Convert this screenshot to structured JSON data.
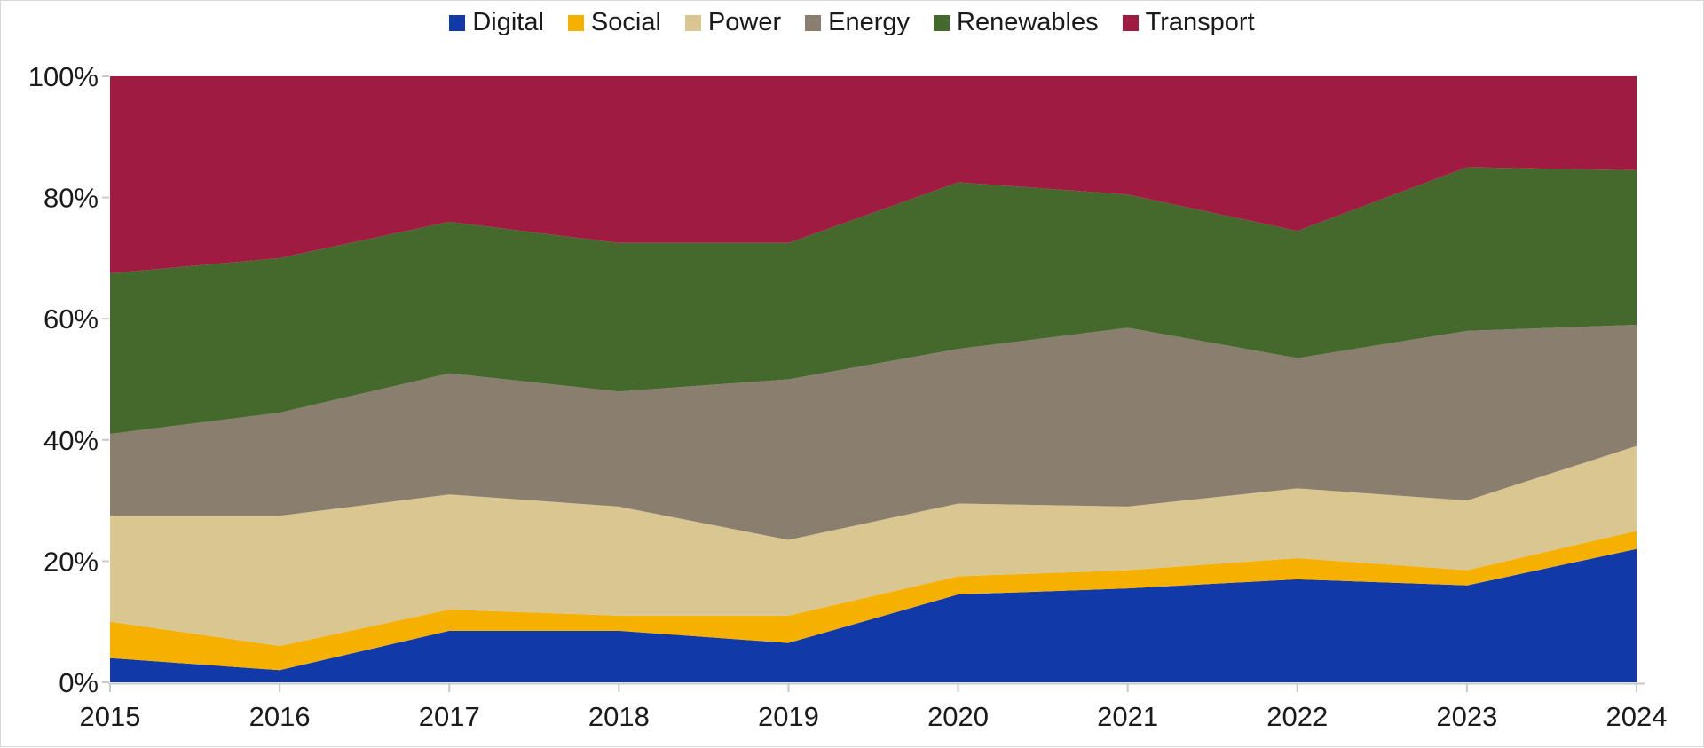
{
  "chart_data": {
    "type": "area",
    "stacking": "percent",
    "title": "",
    "categories": [
      "2015",
      "2016",
      "2017",
      "2018",
      "2019",
      "2020",
      "2021",
      "2022",
      "2023",
      "2024"
    ],
    "series": [
      {
        "name": "Digital",
        "color": "#1139A8",
        "values": [
          4,
          2,
          8.5,
          8.5,
          6.5,
          14.5,
          15.5,
          17,
          16,
          22
        ]
      },
      {
        "name": "Social",
        "color": "#F5B000",
        "values": [
          6,
          4,
          3.5,
          2.5,
          4.5,
          3,
          3,
          3.5,
          2.5,
          3
        ]
      },
      {
        "name": "Power",
        "color": "#D9C690",
        "values": [
          17.5,
          21.5,
          19,
          18,
          12.5,
          12,
          10.5,
          11.5,
          11.5,
          14
        ]
      },
      {
        "name": "Energy",
        "color": "#8A7E6F",
        "values": [
          13.5,
          17,
          20,
          19,
          26.5,
          25.5,
          29.5,
          21.5,
          28,
          20
        ]
      },
      {
        "name": "Renewables",
        "color": "#45682C",
        "values": [
          26.5,
          25.5,
          25,
          24.5,
          22.5,
          27.5,
          22,
          21,
          27,
          25.5
        ]
      },
      {
        "name": "Transport",
        "color": "#A01B42",
        "values": [
          32.5,
          30,
          24,
          27.5,
          27.5,
          17.5,
          19.5,
          25.5,
          15,
          15.5
        ]
      }
    ],
    "y_axis": {
      "min": 0,
      "max": 100,
      "tick_step": 20,
      "tick_labels": [
        "100%",
        "80%",
        "60%",
        "40%",
        "20%",
        "0%"
      ]
    },
    "x_axis": {
      "tick_labels": [
        "2015",
        "2016",
        "2017",
        "2018",
        "2019",
        "2020",
        "2021",
        "2022",
        "2023",
        "2024"
      ]
    },
    "legend": {
      "position": "top"
    },
    "grid": false
  },
  "style_colors": {
    "background": "#FFFFFF",
    "frame_border": "#D9D9D9",
    "axis_line": "#C8C8C8",
    "tick_mark": "#C8C8C8",
    "label_text": "#1A1A1A"
  }
}
